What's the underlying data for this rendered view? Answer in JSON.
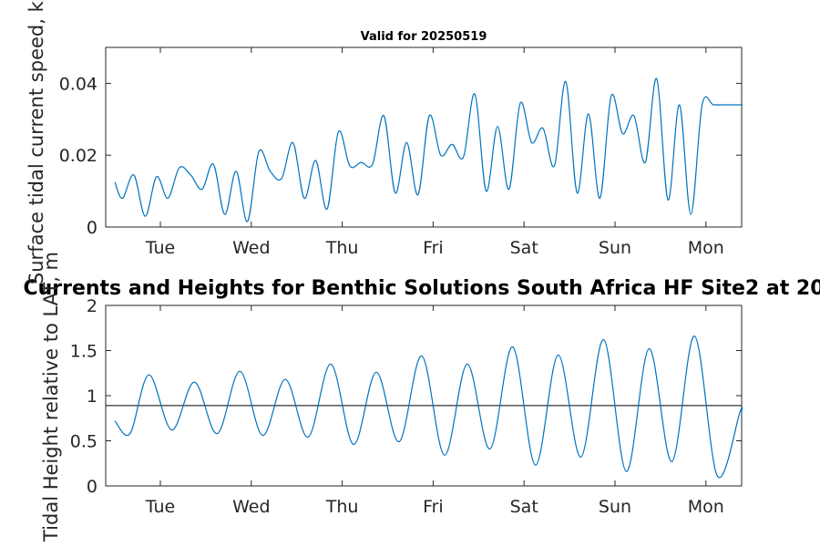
{
  "colors": {
    "line": "#0072BD",
    "axis": "#262626",
    "ref_line": "#000000",
    "background": "#ffffff"
  },
  "chart_data": [
    {
      "type": "line",
      "title": "Valid for 20250519",
      "xlabel": "",
      "ylabel": "Surface tidal current speed, kn",
      "x_ticks": [
        "Tue",
        "Wed",
        "Thu",
        "Fri",
        "Sat",
        "Sun",
        "Mon"
      ],
      "y_ticks": [
        "0",
        "0.02",
        "0.04"
      ],
      "ylim": [
        0,
        0.05
      ],
      "grid": false,
      "series": [
        {
          "x": [
            "Mon 12:00",
            "Mon 14:00",
            "Mon 17:00",
            "Mon 20:00",
            "Mon 23:00",
            "Tue 02:00",
            "Tue 05:00",
            "Tue 08:00",
            "Tue 11:00",
            "Tue 14:00",
            "Tue 17:00",
            "Tue 20:00",
            "Tue 23:00",
            "Wed 02:00",
            "Wed 05:00",
            "Wed 08:00",
            "Wed 11:00",
            "Wed 14:00",
            "Wed 17:00",
            "Wed 20:00",
            "Wed 23:00",
            "Thu 02:00",
            "Thu 05:00",
            "Thu 08:00",
            "Thu 11:00",
            "Thu 14:00",
            "Thu 17:00",
            "Thu 20:00",
            "Thu 23:00",
            "Fri 02:00",
            "Fri 05:00",
            "Fri 08:00",
            "Fri 11:00",
            "Fri 14:00",
            "Fri 17:00",
            "Fri 20:00",
            "Fri 23:00",
            "Sat 02:00",
            "Sat 05:00",
            "Sat 08:00",
            "Sat 11:00",
            "Sat 14:00",
            "Sat 17:00",
            "Sat 20:00",
            "Sat 23:00",
            "Sun 02:00",
            "Sun 05:00",
            "Sun 08:00",
            "Sun 11:00",
            "Sun 14:00",
            "Sun 17:00",
            "Sun 20:00",
            "Sun 23:00",
            "Mon 02:00",
            "Mon 05:00",
            "Mon 08:00",
            "Mon 11:00",
            "Mon 14:00",
            "Mon 16:00"
          ],
          "values": [
            0.0125,
            0.008,
            0.0145,
            0.003,
            0.014,
            0.008,
            0.0165,
            0.0145,
            0.0105,
            0.0175,
            0.0035,
            0.0155,
            0.0015,
            0.021,
            0.0155,
            0.0135,
            0.0235,
            0.008,
            0.0185,
            0.005,
            0.0265,
            0.017,
            0.018,
            0.0175,
            0.031,
            0.0095,
            0.0235,
            0.009,
            0.031,
            0.02,
            0.023,
            0.0195,
            0.037,
            0.01,
            0.028,
            0.0105,
            0.0345,
            0.0235,
            0.0275,
            0.017,
            0.0405,
            0.0095,
            0.0315,
            0.008,
            0.0365,
            0.026,
            0.031,
            0.018,
            0.0413,
            0.0075,
            0.034,
            0.0035,
            0.034,
            0.034,
            0.034,
            0.034,
            0.034,
            0.034,
            0.034
          ]
        }
      ]
    },
    {
      "type": "line",
      "title": "Currents and Heights for Benthic Solutions South Africa HF Site2 at 20",
      "xlabel": "",
      "ylabel": "Tidal Height relative to LAT, m",
      "x_ticks": [
        "Tue",
        "Wed",
        "Thu",
        "Fri",
        "Sat",
        "Sun",
        "Mon"
      ],
      "y_ticks": [
        "0",
        "0.5",
        "1",
        "1.5",
        "2"
      ],
      "ylim": [
        0,
        2
      ],
      "grid": false,
      "reference_line": 0.89,
      "series": [
        {
          "x": [
            "Mon 12:00",
            "Mon 16:00",
            "Mon 21:00",
            "Tue 03:00",
            "Tue 09:00",
            "Tue 15:00",
            "Tue 21:00",
            "Wed 03:00",
            "Wed 09:00",
            "Wed 15:00",
            "Wed 21:00",
            "Thu 03:00",
            "Thu 09:00",
            "Thu 15:00",
            "Thu 21:00",
            "Fri 03:00",
            "Fri 09:00",
            "Fri 15:00",
            "Fri 21:00",
            "Sat 03:00",
            "Sat 09:00",
            "Sat 15:00",
            "Sat 21:00",
            "Sun 03:00",
            "Sun 09:00",
            "Sun 15:00",
            "Sun 21:00",
            "Mon 03:00",
            "Mon 09:00",
            "Mon 14:00",
            "Mon 16:00"
          ],
          "values": [
            0.72,
            0.58,
            1.23,
            0.62,
            1.15,
            0.58,
            1.27,
            0.56,
            1.18,
            0.54,
            1.35,
            0.46,
            1.26,
            0.49,
            1.44,
            0.34,
            1.35,
            0.41,
            1.54,
            0.23,
            1.45,
            0.32,
            1.62,
            0.16,
            1.52,
            0.27,
            1.66,
            0.11,
            0.82,
            0.82,
            0.82
          ]
        }
      ]
    }
  ]
}
